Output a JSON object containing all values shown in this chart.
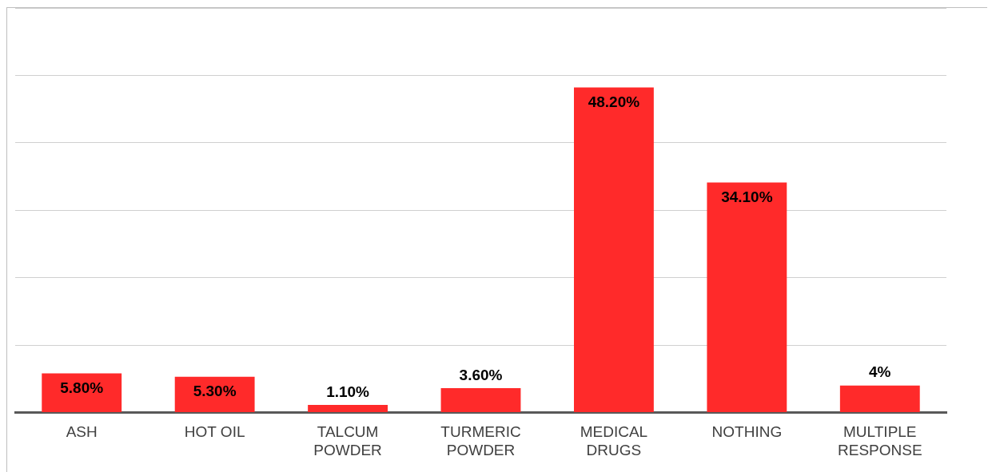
{
  "chart_data": {
    "type": "bar",
    "categories": [
      "ASH",
      "HOT OIL",
      "TALCUM POWDER",
      "TURMERIC POWDER",
      "MEDICAL DRUGS",
      "NOTHING",
      "MULTIPLE RESPONSE"
    ],
    "values": [
      5.8,
      5.3,
      1.1,
      3.6,
      48.2,
      34.1,
      4
    ],
    "value_labels": [
      "5.80%",
      "5.30%",
      "1.10%",
      "3.60%",
      "48.20%",
      "34.10%",
      "4%"
    ],
    "color": "#ff2a2a",
    "ylim": [
      0,
      60
    ],
    "yticks": [
      {
        "value": 0,
        "label": null
      },
      {
        "value": 10,
        "label": null
      },
      {
        "value": 20,
        "label": null
      },
      {
        "value": 30,
        "label": null
      },
      {
        "value": 40,
        "label": null
      },
      {
        "value": 50,
        "label": null
      },
      {
        "value": 60,
        "label": null
      }
    ],
    "grid": "y",
    "tick_labels": "x",
    "legend": false
  }
}
